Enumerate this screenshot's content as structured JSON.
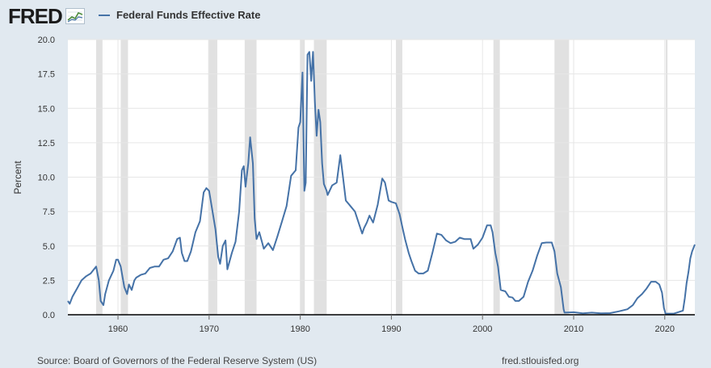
{
  "header": {
    "logo_text": "FRED",
    "logo_icon": "trend-line-icon",
    "legend_label": "Federal Funds Effective Rate"
  },
  "footer": {
    "source": "Source: Board of Governors of the Federal Reserve System (US)",
    "site": "fred.stlouisfed.org"
  },
  "colors": {
    "background": "#e1e9f0",
    "plot_background": "#ffffff",
    "series": "#4572a7",
    "recession": "#e1e1e1",
    "grid": "#e6e6e6"
  },
  "chart_data": {
    "type": "line",
    "title": "",
    "xlabel": "",
    "ylabel": "Percent",
    "xlim": [
      1954.5,
      2023.3
    ],
    "ylim": [
      0,
      20
    ],
    "yticks": [
      "0.0",
      "2.5",
      "5.0",
      "7.5",
      "10.0",
      "12.5",
      "15.0",
      "17.5",
      "20.0"
    ],
    "ytick_values": [
      0,
      2.5,
      5,
      7.5,
      10,
      12.5,
      15,
      17.5,
      20
    ],
    "xticks": [
      "1960",
      "1970",
      "1980",
      "1990",
      "2000",
      "2010",
      "2020"
    ],
    "xtick_values": [
      1960,
      1970,
      1980,
      1990,
      2000,
      2010,
      2020
    ],
    "grid": true,
    "legend": "top-left",
    "recessions": [
      [
        1957.6,
        1958.3
      ],
      [
        1960.3,
        1961.1
      ],
      [
        1969.9,
        1970.9
      ],
      [
        1973.9,
        1975.2
      ],
      [
        1980.0,
        1980.5
      ],
      [
        1981.5,
        1982.9
      ],
      [
        1990.5,
        1991.2
      ],
      [
        2001.2,
        2001.9
      ],
      [
        2007.9,
        2009.5
      ],
      [
        2020.1,
        2020.3
      ]
    ],
    "series": [
      {
        "name": "Federal Funds Effective Rate",
        "x": [
          1954.5,
          1954.7,
          1955.0,
          1955.5,
          1956.0,
          1956.5,
          1957.0,
          1957.6,
          1957.9,
          1958.1,
          1958.4,
          1958.6,
          1959.0,
          1959.5,
          1959.8,
          1960.0,
          1960.3,
          1960.7,
          1961.0,
          1961.2,
          1961.5,
          1961.8,
          1962.0,
          1962.5,
          1963.0,
          1963.5,
          1964.0,
          1964.5,
          1965.0,
          1965.5,
          1966.0,
          1966.5,
          1966.8,
          1967.0,
          1967.3,
          1967.6,
          1968.0,
          1968.5,
          1969.0,
          1969.4,
          1969.7,
          1970.0,
          1970.3,
          1970.7,
          1971.0,
          1971.2,
          1971.5,
          1971.8,
          1972.0,
          1972.5,
          1972.9,
          1973.3,
          1973.6,
          1973.8,
          1974.0,
          1974.3,
          1974.5,
          1974.8,
          1975.0,
          1975.2,
          1975.5,
          1975.8,
          1976.0,
          1976.5,
          1977.0,
          1977.5,
          1978.0,
          1978.5,
          1979.0,
          1979.5,
          1979.8,
          1980.0,
          1980.25,
          1980.45,
          1980.6,
          1980.8,
          1981.0,
          1981.2,
          1981.4,
          1981.6,
          1981.8,
          1982.0,
          1982.2,
          1982.4,
          1982.6,
          1982.9,
          1983.0,
          1983.5,
          1984.0,
          1984.4,
          1984.6,
          1985.0,
          1985.5,
          1986.0,
          1986.5,
          1986.8,
          1987.0,
          1987.3,
          1987.6,
          1988.0,
          1988.5,
          1989.0,
          1989.3,
          1989.7,
          1990.0,
          1990.5,
          1990.9,
          1991.2,
          1991.5,
          1991.9,
          1992.2,
          1992.6,
          1993.0,
          1993.5,
          1994.0,
          1994.5,
          1995.0,
          1995.5,
          1996.0,
          1996.5,
          1997.0,
          1997.5,
          1998.0,
          1998.7,
          1999.0,
          1999.5,
          2000.0,
          2000.5,
          2000.9,
          2001.1,
          2001.4,
          2001.7,
          2002.0,
          2002.5,
          2002.9,
          2003.3,
          2003.6,
          2004.0,
          2004.5,
          2005.0,
          2005.5,
          2006.0,
          2006.5,
          2007.0,
          2007.6,
          2007.9,
          2008.2,
          2008.6,
          2008.9,
          2009.0,
          2010.0,
          2011.0,
          2012.0,
          2013.0,
          2014.0,
          2015.0,
          2015.9,
          2016.5,
          2017.0,
          2017.5,
          2018.0,
          2018.5,
          2019.0,
          2019.4,
          2019.7,
          2019.9,
          2020.1,
          2020.3,
          2021.0,
          2022.0,
          2022.2,
          2022.4,
          2022.6,
          2022.8,
          2023.0,
          2023.3
        ],
        "values": [
          1.0,
          0.8,
          1.3,
          1.9,
          2.5,
          2.8,
          3.0,
          3.5,
          2.5,
          1.0,
          0.7,
          1.5,
          2.5,
          3.2,
          4.0,
          4.0,
          3.5,
          2.0,
          1.5,
          2.2,
          1.8,
          2.5,
          2.7,
          2.9,
          3.0,
          3.4,
          3.5,
          3.5,
          4.0,
          4.1,
          4.6,
          5.5,
          5.6,
          4.5,
          3.9,
          3.9,
          4.6,
          6.0,
          6.8,
          8.9,
          9.2,
          9.0,
          7.8,
          6.2,
          4.2,
          3.7,
          5.0,
          5.4,
          3.3,
          4.5,
          5.3,
          7.5,
          10.5,
          10.8,
          9.3,
          11.0,
          12.9,
          11.0,
          7.0,
          5.5,
          6.0,
          5.3,
          4.8,
          5.2,
          4.7,
          5.7,
          6.8,
          7.9,
          10.1,
          10.5,
          13.6,
          14.0,
          17.6,
          9.0,
          9.6,
          18.9,
          19.1,
          17.0,
          19.1,
          15.5,
          13.0,
          14.9,
          14.0,
          11.0,
          9.5,
          9.0,
          8.7,
          9.4,
          9.6,
          11.6,
          10.5,
          8.3,
          7.9,
          7.5,
          6.5,
          5.9,
          6.3,
          6.7,
          7.2,
          6.7,
          8.0,
          9.9,
          9.6,
          8.3,
          8.2,
          8.1,
          7.3,
          6.4,
          5.5,
          4.5,
          3.9,
          3.2,
          3.0,
          3.0,
          3.2,
          4.5,
          5.9,
          5.8,
          5.4,
          5.2,
          5.3,
          5.6,
          5.5,
          5.5,
          4.8,
          5.1,
          5.6,
          6.5,
          6.5,
          6.0,
          4.5,
          3.5,
          1.8,
          1.7,
          1.3,
          1.25,
          1.0,
          1.0,
          1.3,
          2.4,
          3.2,
          4.3,
          5.2,
          5.25,
          5.25,
          4.6,
          3.0,
          2.0,
          0.4,
          0.15,
          0.18,
          0.1,
          0.15,
          0.1,
          0.12,
          0.25,
          0.4,
          0.7,
          1.2,
          1.5,
          1.9,
          2.4,
          2.4,
          2.2,
          1.6,
          0.5,
          0.05,
          0.08,
          0.08,
          0.3,
          1.2,
          2.3,
          3.1,
          4.1,
          4.6,
          5.1
        ]
      }
    ]
  }
}
